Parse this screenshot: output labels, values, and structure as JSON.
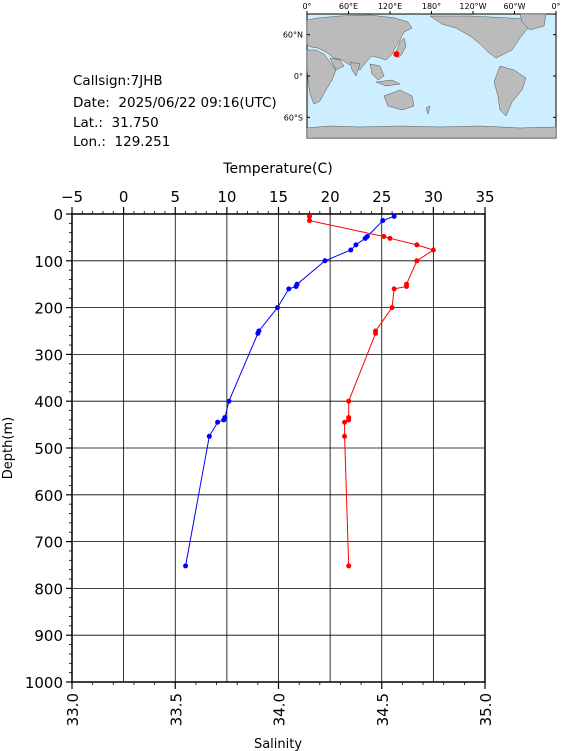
{
  "station": {
    "callsign_text": "Callsign:7JHB",
    "date_text": "Date:  2025/06/22 09:16(UTC)",
    "lat_text": "Lat.:  31.750",
    "lon_text": "Lon.:  129.251"
  },
  "map": {
    "top_ticks": [
      "0°",
      "60°E",
      "120°E",
      "180°",
      "120°W",
      "60°W",
      "0°"
    ],
    "lat_ticks": [
      "60°N",
      "0°",
      "60°S"
    ],
    "lat_values": [
      60,
      0,
      -60
    ],
    "lon_range": [
      0,
      360
    ],
    "lat_range": [
      -90,
      90
    ],
    "marker": {
      "lat": 31.75,
      "lon": 129.251
    },
    "ocean_color": "#cceeff",
    "land_color": "#bbbbbb",
    "marker_color": "#ff0000"
  },
  "chart_data": {
    "type": "line",
    "ylabel": "Depth(m)",
    "yticks": [
      0,
      100,
      200,
      300,
      400,
      500,
      600,
      700,
      800,
      900,
      1000
    ],
    "ylim": [
      0,
      1000
    ],
    "temperature_axis": {
      "label": "Temperature(C)",
      "ticks": [
        -5,
        0,
        5,
        10,
        15,
        20,
        25,
        30,
        35
      ],
      "range": [
        -5,
        35
      ]
    },
    "salinity_axis": {
      "label": "Salinity",
      "ticks": [
        "33.0",
        "33.5",
        "34.0",
        "34.5",
        "35.0"
      ],
      "range": [
        33.0,
        35.0
      ]
    },
    "grid": true,
    "series": [
      {
        "axis": "temperature",
        "color": "#0000ff",
        "points": [
          [
            26.2,
            5
          ],
          [
            25.1,
            14
          ],
          [
            23.6,
            48
          ],
          [
            23.4,
            52
          ],
          [
            22.5,
            66
          ],
          [
            22.0,
            77
          ],
          [
            19.5,
            100
          ],
          [
            16.8,
            150
          ],
          [
            16.7,
            155
          ],
          [
            16.0,
            160
          ],
          [
            14.9,
            200
          ],
          [
            13.1,
            250
          ],
          [
            13.0,
            255
          ],
          [
            10.2,
            400
          ],
          [
            9.8,
            435
          ],
          [
            9.7,
            440
          ],
          [
            9.1,
            445
          ],
          [
            8.3,
            475
          ],
          [
            6.0,
            752
          ]
        ]
      },
      {
        "axis": "salinity",
        "color": "#ff0000",
        "points": [
          [
            34.15,
            5
          ],
          [
            34.15,
            14
          ],
          [
            34.51,
            48
          ],
          [
            34.54,
            52
          ],
          [
            34.67,
            66
          ],
          [
            34.75,
            77
          ],
          [
            34.67,
            100
          ],
          [
            34.62,
            150
          ],
          [
            34.62,
            155
          ],
          [
            34.56,
            160
          ],
          [
            34.55,
            200
          ],
          [
            34.47,
            250
          ],
          [
            34.47,
            255
          ],
          [
            34.34,
            400
          ],
          [
            34.34,
            435
          ],
          [
            34.34,
            440
          ],
          [
            34.32,
            445
          ],
          [
            34.32,
            475
          ],
          [
            34.34,
            752
          ]
        ]
      }
    ]
  }
}
